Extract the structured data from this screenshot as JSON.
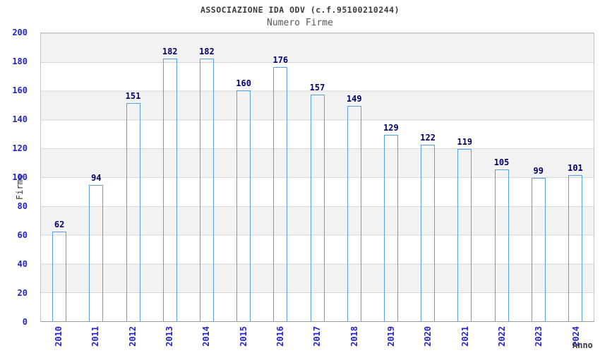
{
  "chart_data": {
    "type": "bar",
    "title": "ASSOCIAZIONE IDA ODV (c.f.95100210244)",
    "subtitle": "Numero Firme",
    "xlabel": "Anno",
    "ylabel": "Firme",
    "categories": [
      "2010",
      "2011",
      "2012",
      "2013",
      "2014",
      "2015",
      "2016",
      "2017",
      "2018",
      "2019",
      "2020",
      "2021",
      "2022",
      "2023",
      "2024"
    ],
    "values": [
      62,
      94,
      151,
      182,
      182,
      160,
      176,
      157,
      149,
      129,
      122,
      119,
      105,
      99,
      101
    ],
    "ylim": [
      0,
      200
    ],
    "ytick_step": 20,
    "yticks": [
      0,
      20,
      40,
      60,
      80,
      100,
      120,
      140,
      160,
      180,
      200
    ],
    "grid": true,
    "legend": "none",
    "bar_labels_shown": true,
    "colors": {
      "bar_dark": "#1b1b80",
      "bar_light": "#c0c8e6",
      "bar_border": "#57a0e8",
      "tick_label": "#2323cc",
      "value_label": "#000066",
      "title": "#3a3a3a",
      "subtitle": "#5a5a5a",
      "band": "#f2f2f2",
      "gridline": "#d7d7d7"
    }
  }
}
